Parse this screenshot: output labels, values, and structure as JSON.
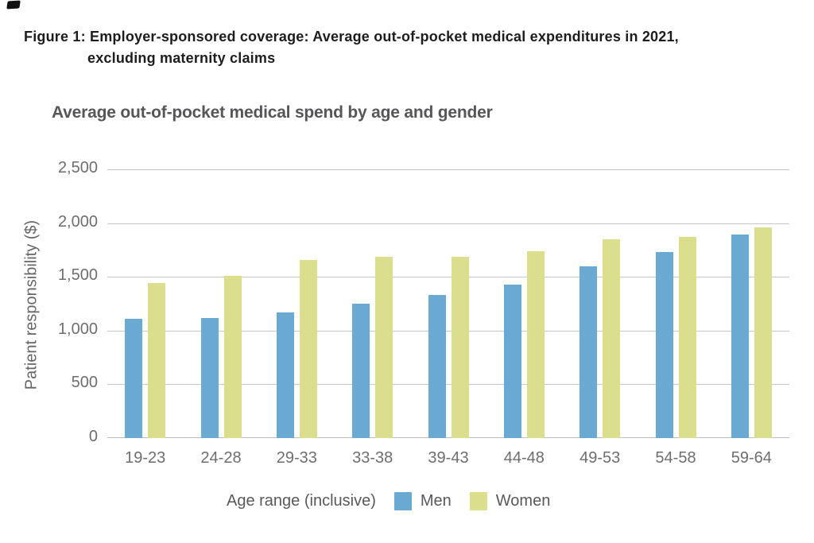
{
  "figure": {
    "title_line1": "Figure 1: Employer-sponsored coverage: Average out-of-pocket medical expenditures in 2021,",
    "title_line2": "excluding maternity claims"
  },
  "chart_data": {
    "type": "bar",
    "title": "Average out-of-pocket medical spend by age and gender",
    "categories": [
      "19-23",
      "24-28",
      "29-33",
      "33-38",
      "39-43",
      "44-48",
      "49-53",
      "54-58",
      "59-64"
    ],
    "series": [
      {
        "name": "Men",
        "color": "#6aa9d2",
        "values": [
          1110,
          1120,
          1170,
          1250,
          1330,
          1430,
          1600,
          1730,
          1890
        ]
      },
      {
        "name": "Women",
        "color": "#dbde8d",
        "values": [
          1440,
          1510,
          1660,
          1690,
          1690,
          1740,
          1850,
          1870,
          1960
        ]
      }
    ],
    "xlabel": "Age range (inclusive)",
    "ylabel": "Patient responsibility ($)",
    "ylim": [
      0,
      2500
    ],
    "yticks": [
      0,
      500,
      1000,
      1500,
      2000,
      2500
    ],
    "ytick_labels": [
      "0",
      "500",
      "1,000",
      "1,500",
      "2,000",
      "2,500"
    ],
    "grid": true,
    "legend_position": "bottom"
  },
  "colors": {
    "men_bar": "#6aa9d2",
    "women_bar": "#dbde8d",
    "gridline": "#c7c7c7",
    "tick_text": "#6e6e70",
    "title_text": "#1d1d1f",
    "chart_title_text": "#565659"
  }
}
